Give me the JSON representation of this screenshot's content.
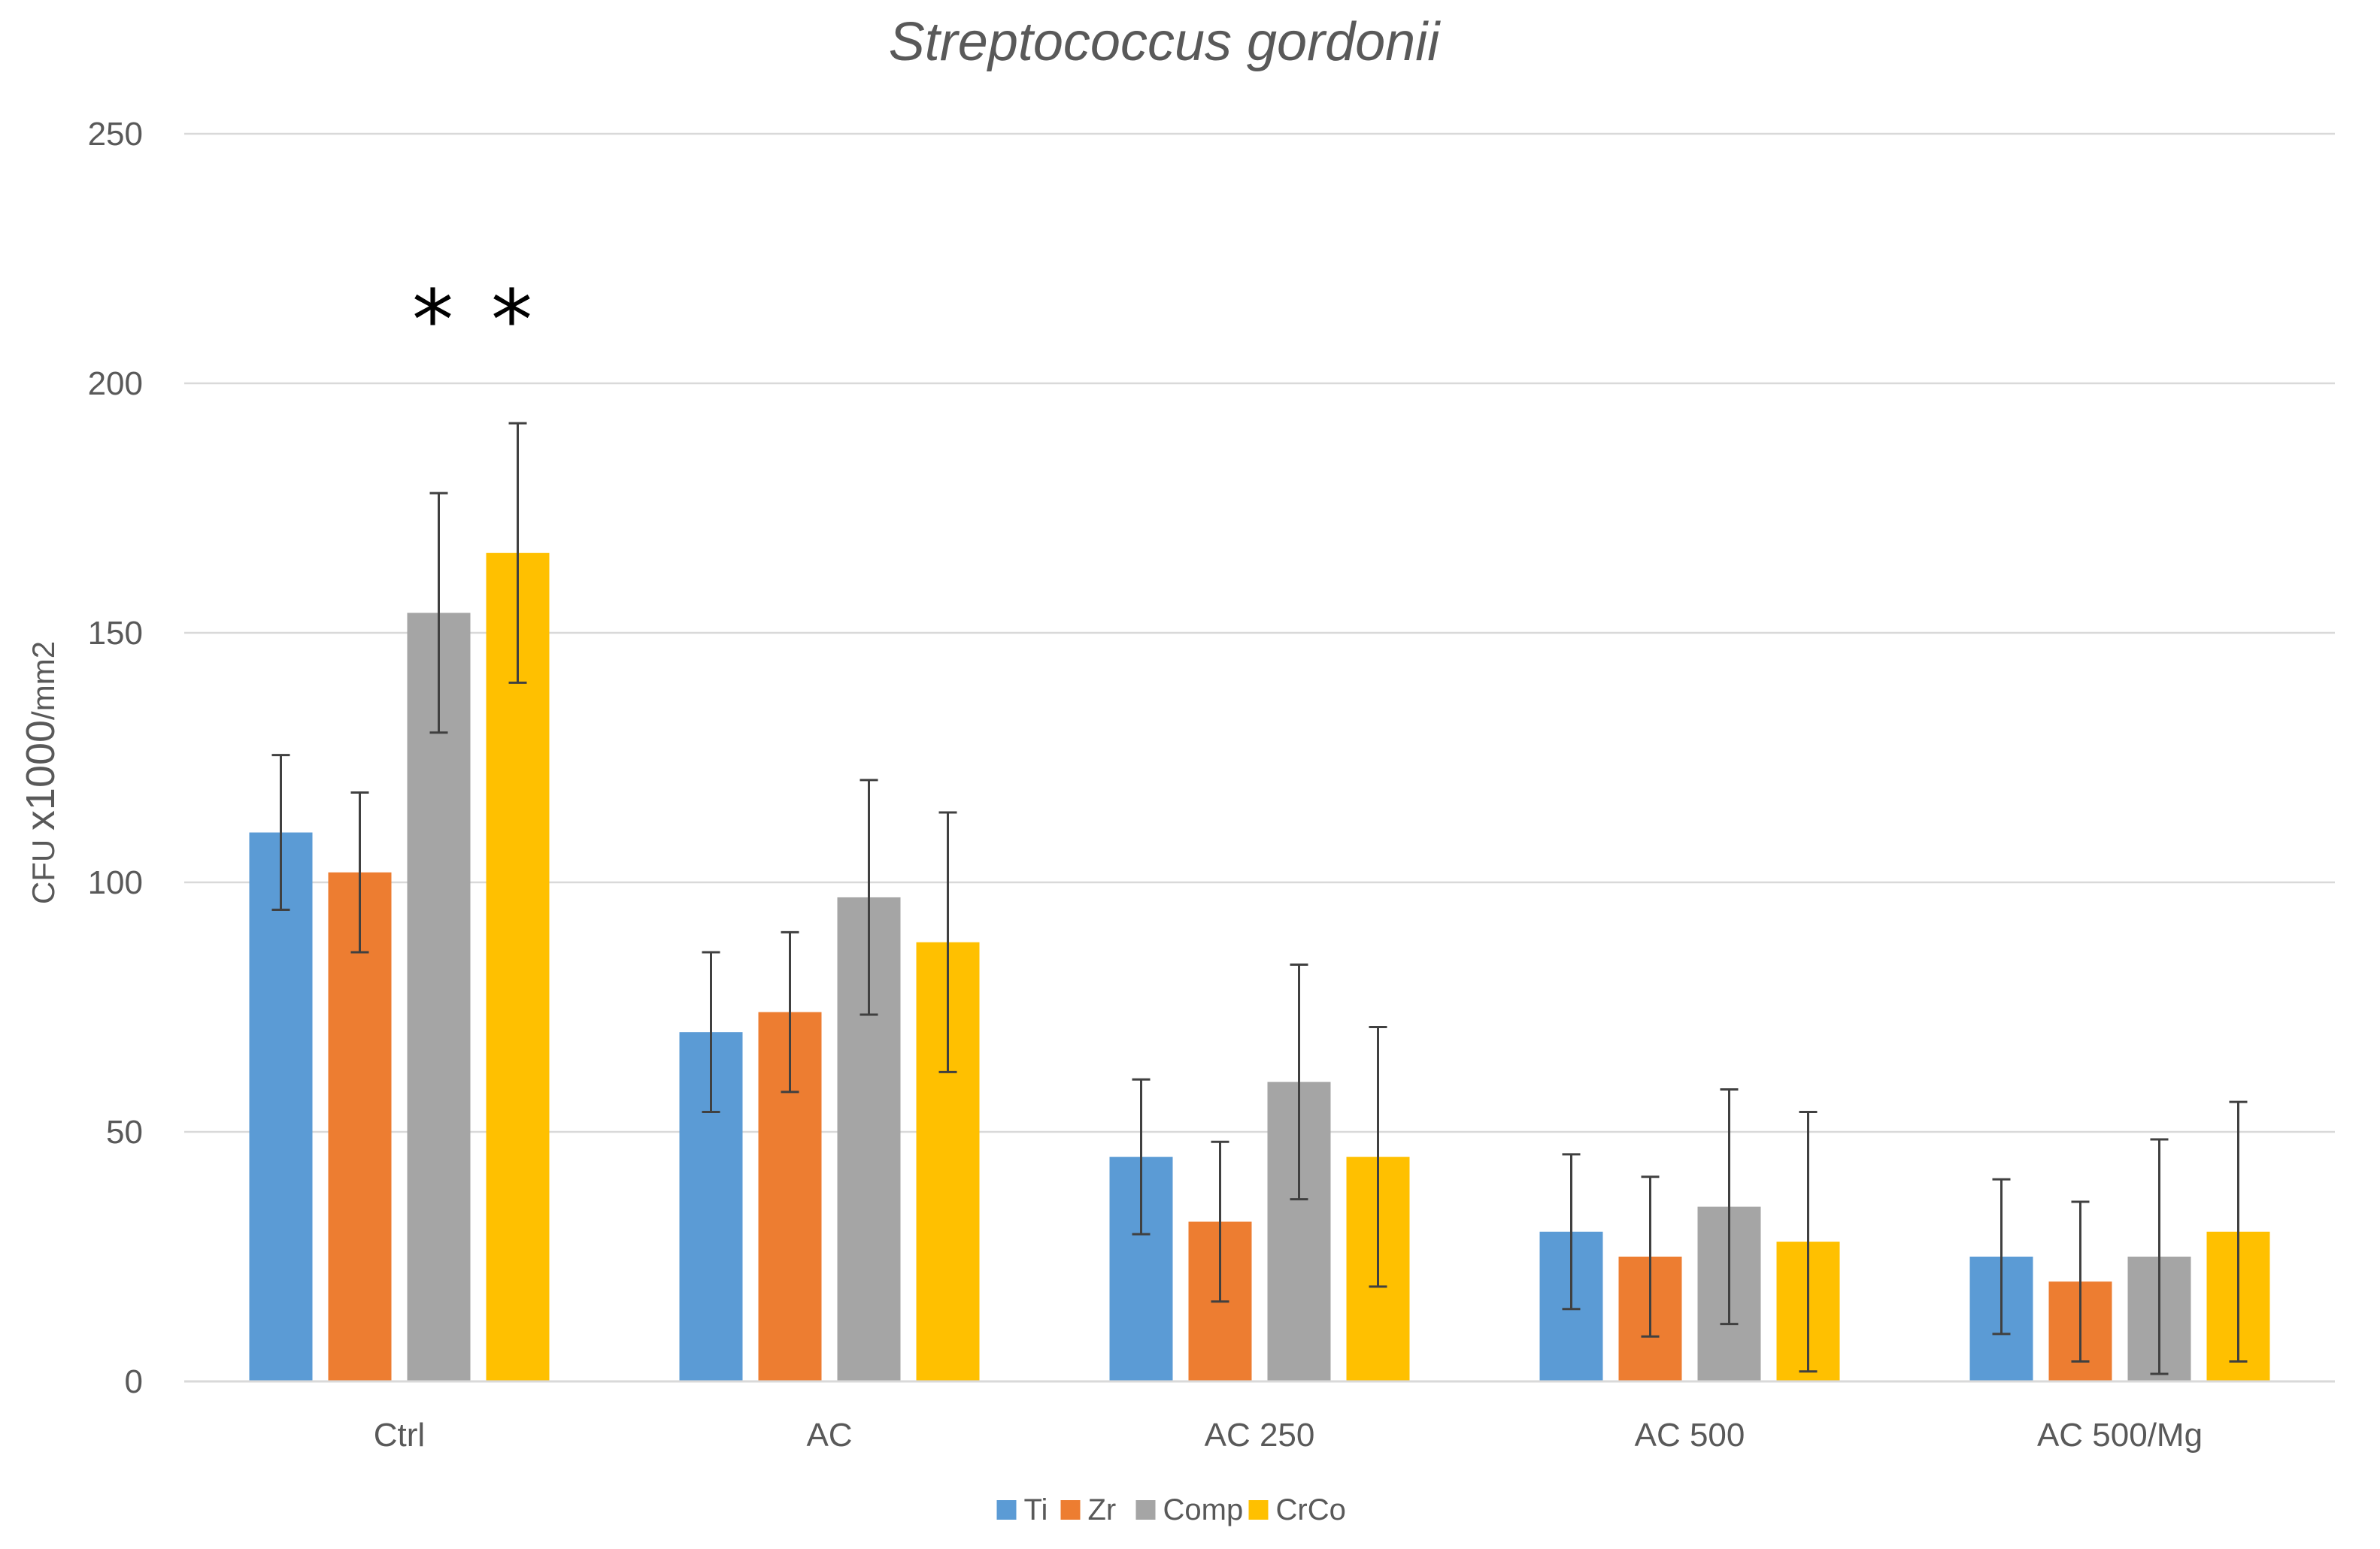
{
  "chart_data": {
    "type": "bar",
    "title": "Streptococcus gordonii",
    "xlabel": "",
    "ylabel_parts": [
      "CFU ",
      "x1000",
      "/mm2"
    ],
    "ylim": [
      0,
      250
    ],
    "yticks": [
      0,
      50,
      100,
      150,
      200,
      250
    ],
    "categories": [
      "Ctrl",
      "AC",
      "AC 250",
      "AC 500",
      "AC 500/Mg"
    ],
    "series": [
      {
        "name": "Ti",
        "color": "#5b9bd5",
        "values": [
          110,
          70,
          45,
          30,
          25
        ],
        "errors": [
          15.5,
          16,
          15.5,
          15.5,
          15.5
        ]
      },
      {
        "name": "Zr",
        "color": "#ed7d31",
        "values": [
          102,
          74,
          32,
          25,
          20
        ],
        "errors": [
          16,
          16,
          16,
          16,
          16
        ]
      },
      {
        "name": "Comp",
        "color": "#a5a5a5",
        "values": [
          154,
          97,
          60,
          35,
          25
        ],
        "errors": [
          24,
          23.5,
          23.5,
          23.5,
          23.5
        ]
      },
      {
        "name": "CrCo",
        "color": "#ffc000",
        "values": [
          166,
          88,
          45,
          28,
          30
        ],
        "errors": [
          26,
          26,
          26,
          26,
          26
        ]
      }
    ],
    "annotations": [
      {
        "text": "*",
        "category": 0,
        "series": 2,
        "y": 216
      },
      {
        "text": "*",
        "category": 0,
        "series": 3,
        "y": 216
      }
    ],
    "legend": "bottom",
    "grid": true
  }
}
